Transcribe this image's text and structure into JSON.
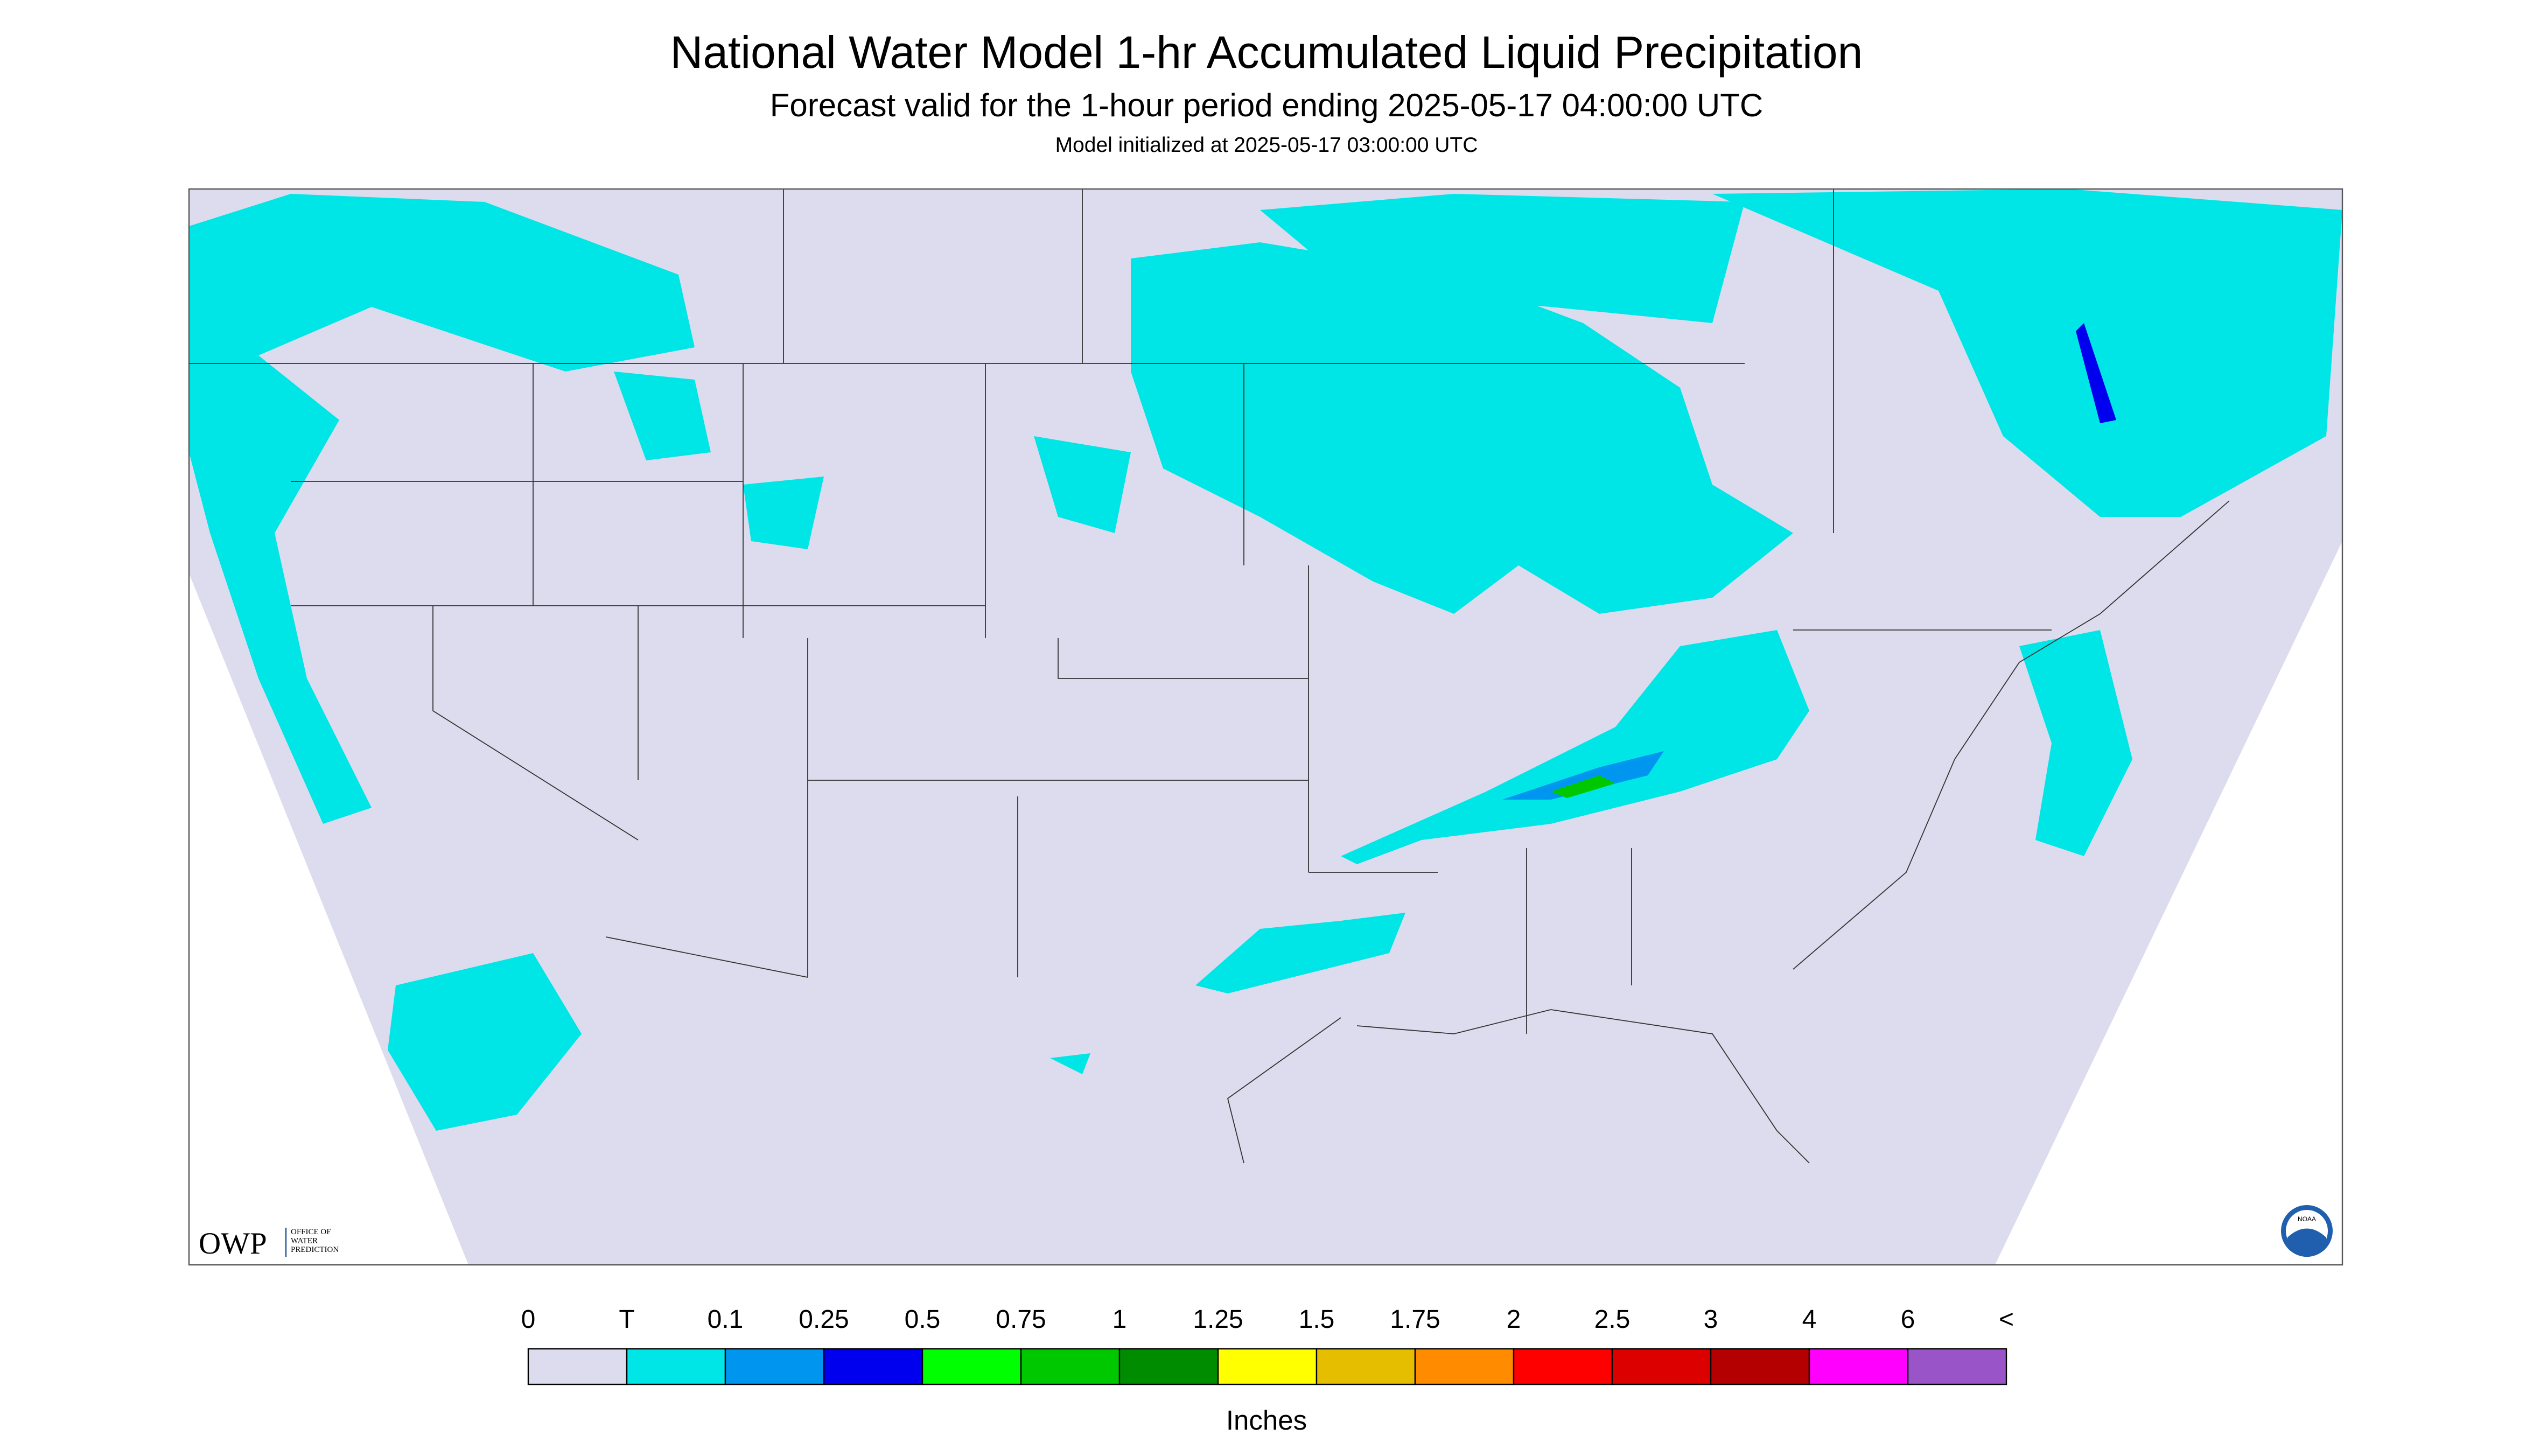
{
  "header": {
    "title": "National Water Model 1-hr Accumulated Liquid Precipitation",
    "subtitle": "Forecast valid for the 1-hour period ending 2025-05-17 04:00:00 UTC",
    "initialized": "Model initialized at 2025-05-17 03:00:00 UTC"
  },
  "legend": {
    "labels": [
      "0",
      "T",
      "0.1",
      "0.25",
      "0.5",
      "0.75",
      "1",
      "1.25",
      "1.5",
      "1.75",
      "2",
      "2.5",
      "3",
      "4",
      "6",
      "<"
    ],
    "colors": [
      "#dcdcee",
      "#00e5e5",
      "#0096f0",
      "#0000ee",
      "#00ff00",
      "#00c800",
      "#008c00",
      "#ffff00",
      "#e6be00",
      "#ff8c00",
      "#ff0000",
      "#dc0000",
      "#b40000",
      "#ff00ff",
      "#9955c8"
    ],
    "unit": "Inches"
  },
  "logo": {
    "name": "OWP",
    "lines": [
      "OFFICE OF",
      "WATER",
      "PREDICTION"
    ],
    "agency": "NOAA"
  }
}
